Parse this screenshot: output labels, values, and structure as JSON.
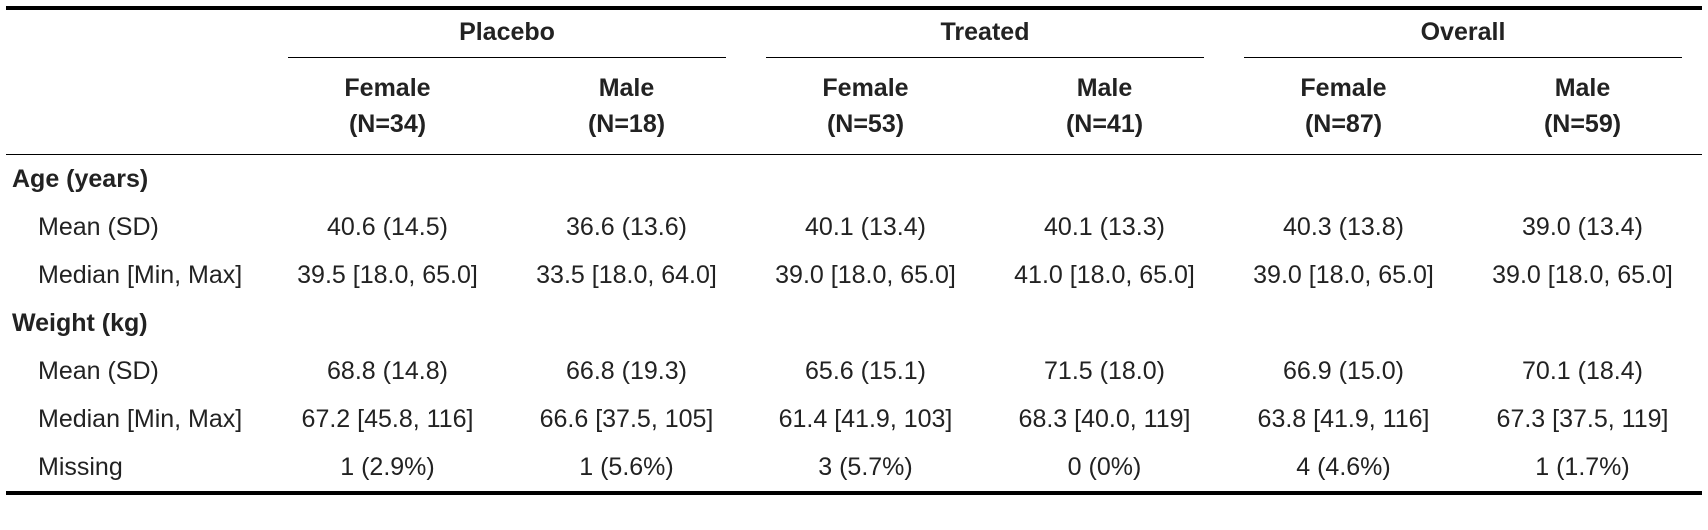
{
  "groups": [
    "Placebo",
    "Treated",
    "Overall"
  ],
  "columns": [
    {
      "label": "Female",
      "n": "(N=34)"
    },
    {
      "label": "Male",
      "n": "(N=18)"
    },
    {
      "label": "Female",
      "n": "(N=53)"
    },
    {
      "label": "Male",
      "n": "(N=41)"
    },
    {
      "label": "Female",
      "n": "(N=87)"
    },
    {
      "label": "Male",
      "n": "(N=59)"
    }
  ],
  "sections": [
    {
      "title": "Age (years)",
      "rows": [
        {
          "label": "Mean (SD)",
          "values": [
            "40.6 (14.5)",
            "36.6 (13.6)",
            "40.1 (13.4)",
            "40.1 (13.3)",
            "40.3 (13.8)",
            "39.0 (13.4)"
          ]
        },
        {
          "label": "Median [Min, Max]",
          "values": [
            "39.5 [18.0, 65.0]",
            "33.5 [18.0, 64.0]",
            "39.0 [18.0, 65.0]",
            "41.0 [18.0, 65.0]",
            "39.0 [18.0, 65.0]",
            "39.0 [18.0, 65.0]"
          ]
        }
      ]
    },
    {
      "title": "Weight (kg)",
      "rows": [
        {
          "label": "Mean (SD)",
          "values": [
            "68.8 (14.8)",
            "66.8 (19.3)",
            "65.6 (15.1)",
            "71.5 (18.0)",
            "66.9 (15.0)",
            "70.1 (18.4)"
          ]
        },
        {
          "label": "Median [Min, Max]",
          "values": [
            "67.2 [45.8, 116]",
            "66.6 [37.5, 105]",
            "61.4 [41.9, 103]",
            "68.3 [40.0, 119]",
            "63.8 [41.9, 116]",
            "67.3 [37.5, 119]"
          ]
        },
        {
          "label": "Missing",
          "values": [
            "1 (2.9%)",
            "1 (5.6%)",
            "3 (5.7%)",
            "0 (0%)",
            "4 (4.6%)",
            "1 (1.7%)"
          ]
        }
      ]
    }
  ]
}
